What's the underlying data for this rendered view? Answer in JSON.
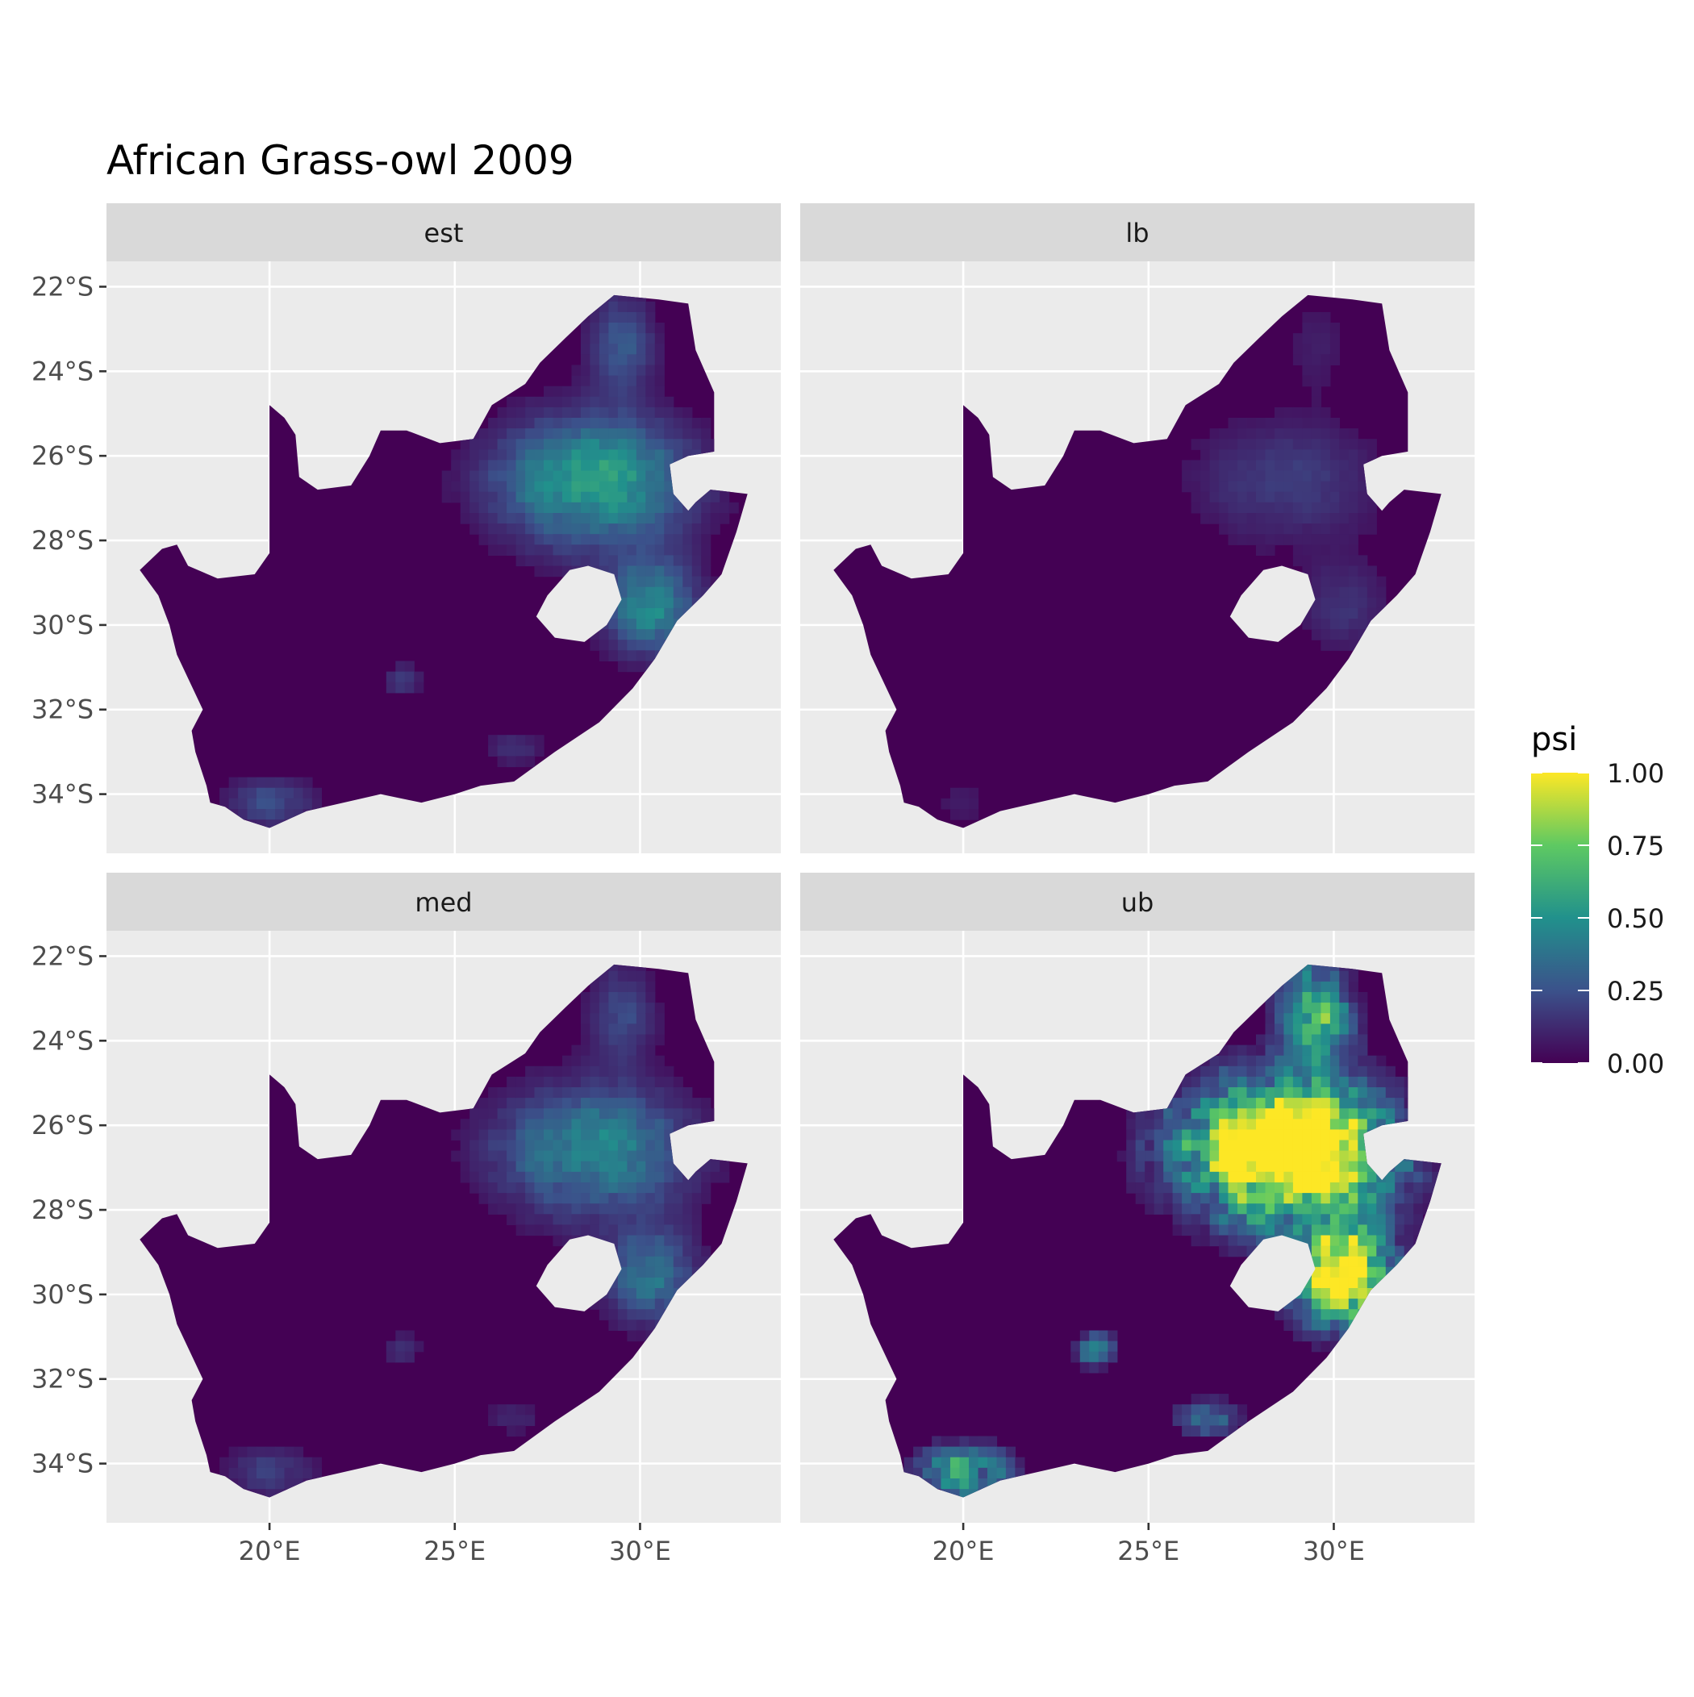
{
  "title": "African Grass-owl 2009",
  "facets": [
    {
      "key": "est",
      "label": "est"
    },
    {
      "key": "lb",
      "label": "lb"
    },
    {
      "key": "med",
      "label": "med"
    },
    {
      "key": "ub",
      "label": "ub"
    }
  ],
  "x_ticks": [
    {
      "value": 20,
      "label": "20°E"
    },
    {
      "value": 25,
      "label": "25°E"
    },
    {
      "value": 30,
      "label": "30°E"
    }
  ],
  "y_ticks": [
    {
      "value": -22,
      "label": "22°S"
    },
    {
      "value": -24,
      "label": "24°S"
    },
    {
      "value": -26,
      "label": "26°S"
    },
    {
      "value": -28,
      "label": "28°S"
    },
    {
      "value": -30,
      "label": "30°S"
    },
    {
      "value": -32,
      "label": "32°S"
    },
    {
      "value": -34,
      "label": "34°S"
    }
  ],
  "x_range": [
    15.6,
    33.8
  ],
  "y_range": [
    -35.4,
    -21.4
  ],
  "legend": {
    "title": "psi",
    "placement": "right",
    "breaks": [
      {
        "value": 1.0,
        "label": "1.00"
      },
      {
        "value": 0.75,
        "label": "0.75"
      },
      {
        "value": 0.5,
        "label": "0.50"
      },
      {
        "value": 0.25,
        "label": "0.25"
      },
      {
        "value": 0.0,
        "label": "0.00"
      }
    ],
    "palette": [
      "#440154",
      "#3b528b",
      "#21918c",
      "#5ec962",
      "#fde725"
    ]
  },
  "colors": {
    "panel_bg": "#ebebeb",
    "strip_bg": "#d9d9d9",
    "grid": "#ffffff",
    "axis_text": "#4d4d4d",
    "low": "#440154"
  }
}
